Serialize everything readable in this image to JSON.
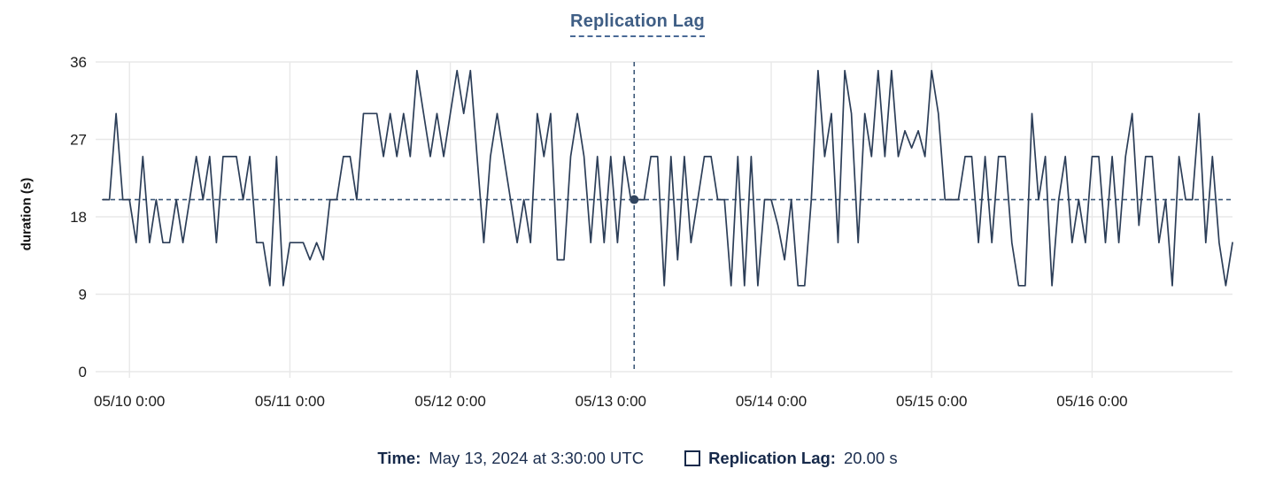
{
  "title": "Replication Lag",
  "colors": {
    "line": "#2c3e58",
    "crosshair": "#3c5878",
    "crosshair_dot": "#31455f",
    "title_text": "#3f5e85",
    "grid": "#e8e8e8",
    "tick_text": "#1c1c1c",
    "tooltip_text": "#16294a",
    "background": "#ffffff"
  },
  "chart_data": {
    "type": "line",
    "title": "Replication Lag",
    "xlabel": "",
    "ylabel": "duration (s)",
    "ylim": [
      0,
      36
    ],
    "yticks": [
      0,
      9,
      18,
      27,
      36
    ],
    "xticks": [
      "05/10 0:00",
      "05/11 0:00",
      "05/12 0:00",
      "05/13 0:00",
      "05/14 0:00",
      "05/15 0:00",
      "05/16 0:00"
    ],
    "x_tick_hour_indices": [
      4,
      28,
      52,
      76,
      100,
      124,
      148
    ],
    "x_start": "2024-05-09 20:00 UTC",
    "x_interval_hours": 1,
    "grid": true,
    "legend_position": "bottom",
    "series": [
      {
        "name": "Replication Lag",
        "unit": "s",
        "values": [
          20,
          20,
          30,
          20,
          20,
          15,
          25,
          15,
          20,
          15,
          15,
          20,
          15,
          20,
          25,
          20,
          25,
          15,
          25,
          25,
          25,
          20,
          25,
          15,
          15,
          10,
          25,
          10,
          15,
          15,
          15,
          13,
          15,
          13,
          20,
          20,
          25,
          25,
          20,
          30,
          30,
          30,
          25,
          30,
          25,
          30,
          25,
          35,
          30,
          25,
          30,
          25,
          30,
          35,
          30,
          35,
          25,
          15,
          25,
          30,
          25,
          20,
          15,
          20,
          15,
          30,
          25,
          30,
          13,
          13,
          25,
          30,
          25,
          15,
          25,
          15,
          25,
          15,
          25,
          20,
          20,
          20,
          25,
          25,
          10,
          25,
          13,
          25,
          15,
          20,
          25,
          25,
          20,
          20,
          10,
          25,
          10,
          25,
          10,
          20,
          20,
          17,
          13,
          20,
          10,
          10,
          20,
          35,
          25,
          30,
          15,
          35,
          30,
          15,
          30,
          25,
          35,
          25,
          35,
          25,
          28,
          26,
          28,
          25,
          35,
          30,
          20,
          20,
          20,
          25,
          25,
          15,
          25,
          15,
          25,
          25,
          15,
          10,
          10,
          30,
          20,
          25,
          10,
          20,
          25,
          15,
          20,
          15,
          25,
          25,
          15,
          25,
          15,
          25,
          30,
          17,
          25,
          25,
          15,
          20,
          10,
          25,
          20,
          20,
          30,
          15,
          25,
          15,
          10,
          15
        ]
      }
    ],
    "crosshair": {
      "time_label": "May 13, 2024 at 3:30:00 UTC",
      "x_hour_index": 79.5,
      "y_value": 20
    }
  },
  "tooltip": {
    "time_label": "Time:",
    "time_value": "May 13, 2024 at 3:30:00 UTC",
    "series_label": "Replication Lag:",
    "series_value": "20.00 s"
  }
}
